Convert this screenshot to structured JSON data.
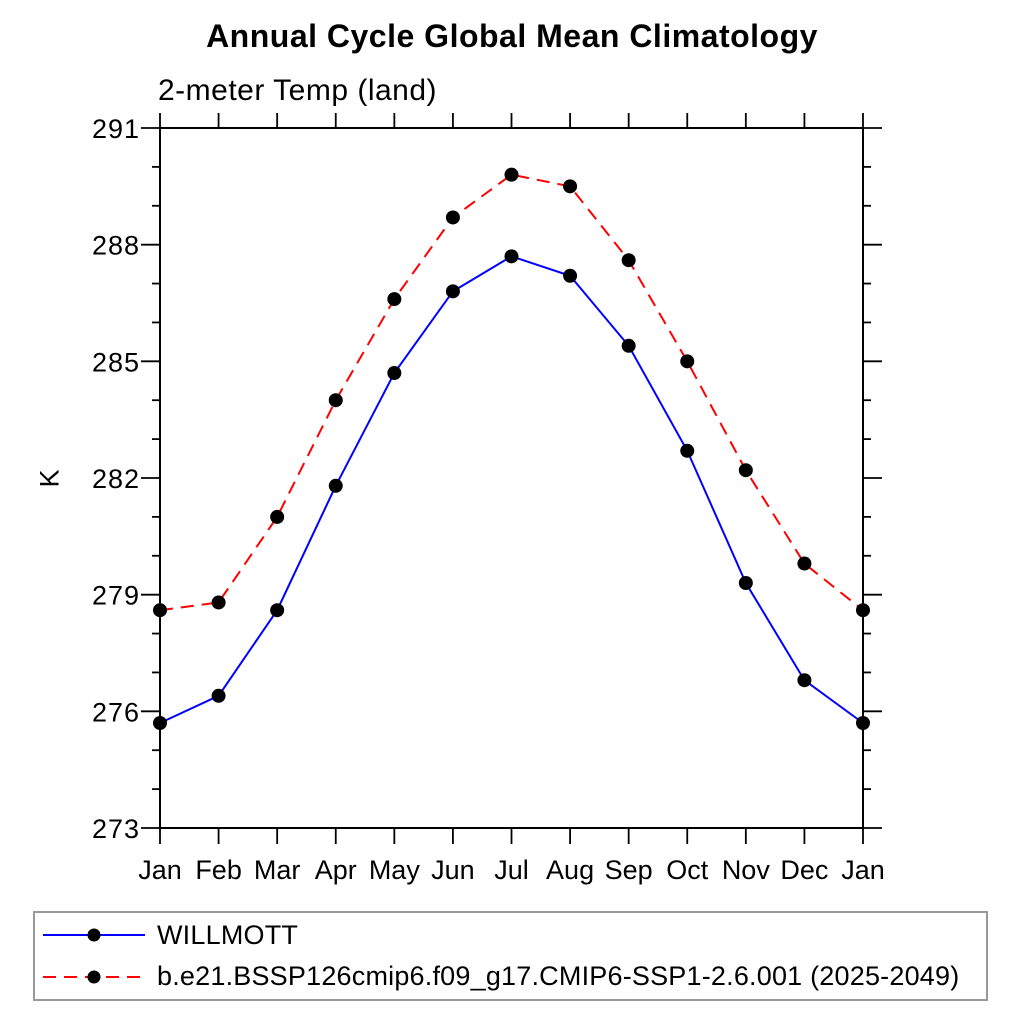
{
  "chart_data": {
    "type": "line",
    "title": "Annual Cycle Global Mean Climatology",
    "subtitle": "2-meter Temp (land)",
    "ylabel": "K",
    "categories": [
      "Jan",
      "Feb",
      "Mar",
      "Apr",
      "May",
      "Jun",
      "Jul",
      "Aug",
      "Sep",
      "Oct",
      "Nov",
      "Dec",
      "Jan"
    ],
    "ylim": [
      273,
      291
    ],
    "ytick_major": [
      273,
      276,
      279,
      282,
      285,
      288,
      291
    ],
    "ytick_minor_step": 1,
    "grid": false,
    "legend_position": "bottom-box",
    "series": [
      {
        "name": "WILLMOTT",
        "color": "#0000ff",
        "line_style": "solid",
        "marker": "filled-circle",
        "marker_color": "#000000",
        "values": [
          275.7,
          276.4,
          278.6,
          281.8,
          284.7,
          286.8,
          287.7,
          287.2,
          285.4,
          282.7,
          279.3,
          276.8,
          275.7
        ]
      },
      {
        "name": "b.e21.BSSP126cmip6.f09_g17.CMIP6-SSP1-2.6.001 (2025-2049)",
        "color": "#ff0000",
        "line_style": "dashed",
        "marker": "filled-circle",
        "marker_color": "#000000",
        "values": [
          278.6,
          278.8,
          281.0,
          284.0,
          286.6,
          288.7,
          289.8,
          289.5,
          287.6,
          285.0,
          282.2,
          279.8,
          278.6
        ]
      }
    ]
  }
}
